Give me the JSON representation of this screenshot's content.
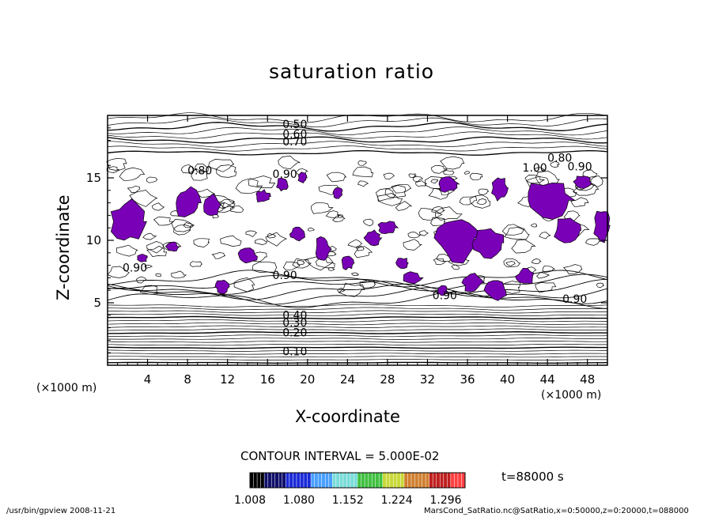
{
  "chart_data": {
    "type": "contour",
    "title": "saturation ratio",
    "xlabel": "X-coordinate",
    "ylabel": "Z-coordinate",
    "x_unit": "(×1000 m)",
    "z_unit": "(×1000 m)",
    "xlim": [
      0,
      50
    ],
    "ylim": [
      0,
      20
    ],
    "x_ticks": [
      4,
      8,
      12,
      16,
      20,
      24,
      28,
      32,
      36,
      40,
      44,
      48
    ],
    "y_ticks": [
      5,
      10,
      15
    ],
    "contour_labels": [
      {
        "text": "0.50",
        "x": 17.5,
        "z": 19.0
      },
      {
        "text": "0.60",
        "x": 17.5,
        "z": 18.2
      },
      {
        "text": "0.70",
        "x": 17.5,
        "z": 17.6
      },
      {
        "text": "0.80",
        "x": 8.0,
        "z": 15.3
      },
      {
        "text": "0.90",
        "x": 16.5,
        "z": 15.0
      },
      {
        "text": "1.00",
        "x": 41.5,
        "z": 15.5
      },
      {
        "text": "0.80",
        "x": 44.0,
        "z": 16.3
      },
      {
        "text": "0.90",
        "x": 46.0,
        "z": 15.6
      },
      {
        "text": "0.90",
        "x": 1.5,
        "z": 7.5
      },
      {
        "text": "0.90",
        "x": 16.5,
        "z": 6.9
      },
      {
        "text": "0.90",
        "x": 32.5,
        "z": 5.3
      },
      {
        "text": "0.90",
        "x": 45.5,
        "z": 5.0
      },
      {
        "text": "0.40",
        "x": 17.5,
        "z": 3.7
      },
      {
        "text": "0.30",
        "x": 17.5,
        "z": 3.1
      },
      {
        "text": "0.20",
        "x": 17.5,
        "z": 2.3
      },
      {
        "text": "0.10",
        "x": 17.5,
        "z": 0.8
      }
    ],
    "shaded_above": 1.0,
    "contour_interval": "CONTOUR INTERVAL = 5.000E-02",
    "colorbar": {
      "ticks": [
        "1.008",
        "1.080",
        "1.152",
        "1.224",
        "1.296"
      ],
      "min": 1.008,
      "max": 1.296
    },
    "time_label": "t=88000 s"
  },
  "footer": {
    "left": "/usr/bin/gpview  2008-11-21",
    "right": "MarsCond_SatRatio.nc@SatRatio,x=0:50000,z=0:20000,t=088000"
  },
  "colors": {
    "supersaturated_fill": "#7a00b8",
    "line": "#000000"
  }
}
